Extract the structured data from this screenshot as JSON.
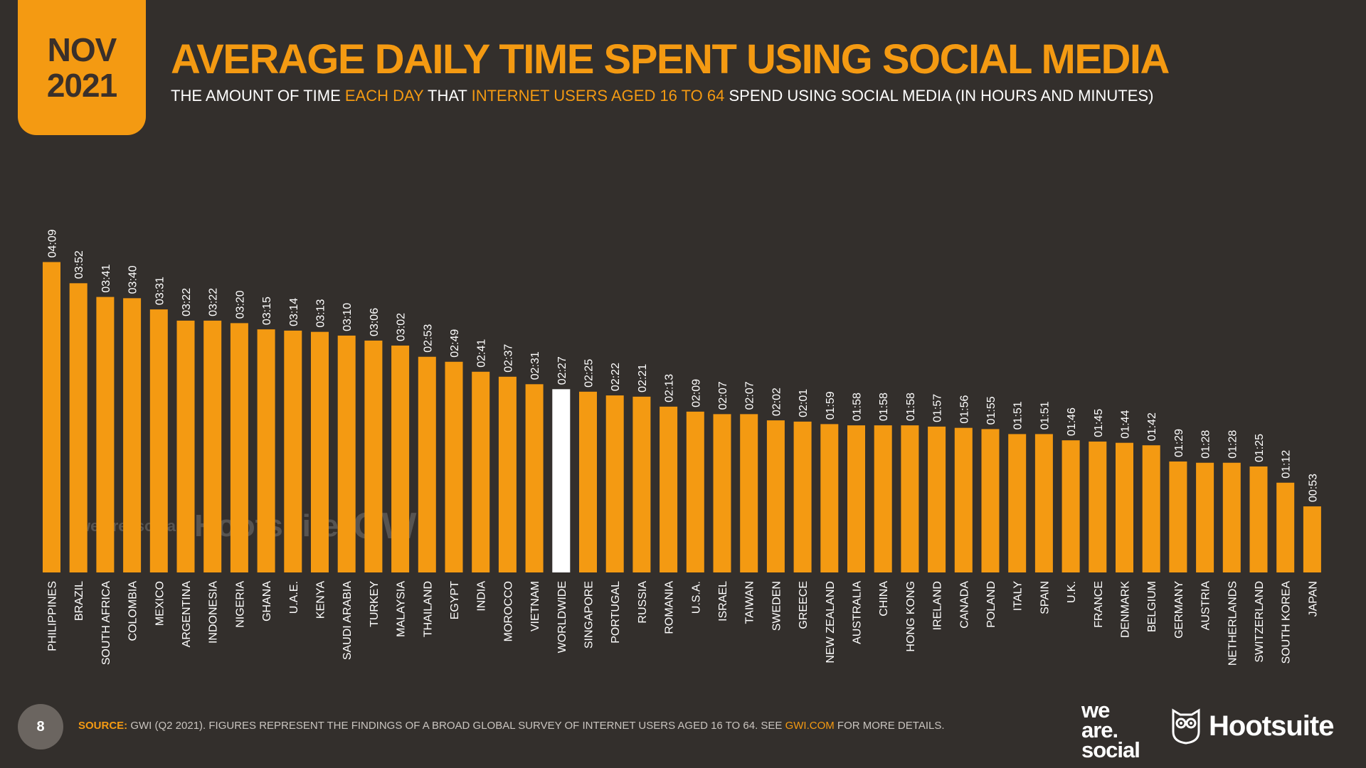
{
  "header": {
    "date_month": "NOV",
    "date_year": "2021",
    "title": "AVERAGE DAILY TIME SPENT USING SOCIAL MEDIA",
    "subtitle": {
      "part1": "THE AMOUNT OF TIME ",
      "hl1": "EACH DAY",
      "part2": " THAT ",
      "hl2": "INTERNET USERS AGED 16 TO 64",
      "part3": " SPEND USING SOCIAL MEDIA (IN HOURS AND MINUTES)"
    }
  },
  "watermark": {
    "weare": "we are. social",
    "hootsuite": "Hootsuite",
    "gwi": "GWI."
  },
  "footer": {
    "page_number": "8",
    "source_label": "SOURCE:",
    "source_text": " GWI (Q2 2021). FIGURES REPRESENT THE FINDINGS OF A BROAD GLOBAL SURVEY OF INTERNET USERS AGED 16 TO 64. SEE ",
    "source_link": "GWI.COM",
    "source_end": " FOR MORE DETAILS.",
    "logo_weare_1": "we",
    "logo_weare_2": "are.",
    "logo_weare_3": "social",
    "logo_hootsuite": "Hootsuite"
  },
  "colors": {
    "background": "#332f2c",
    "accent": "#f49a12",
    "highlight": "#ffffff"
  },
  "chart_data": {
    "type": "bar",
    "title": "AVERAGE DAILY TIME SPENT USING SOCIAL MEDIA",
    "unit": "hours:minutes",
    "highlight_category": "WORLDWIDE",
    "categories": [
      "PHILIPPINES",
      "BRAZIL",
      "SOUTH AFRICA",
      "COLOMBIA",
      "MEXICO",
      "ARGENTINA",
      "INDONESIA",
      "NIGERIA",
      "GHANA",
      "U.A.E.",
      "KENYA",
      "SAUDI ARABIA",
      "TURKEY",
      "MALAYSIA",
      "THAILAND",
      "EGYPT",
      "INDIA",
      "MOROCCO",
      "VIETNAM",
      "WORLDWIDE",
      "SINGAPORE",
      "PORTUGAL",
      "RUSSIA",
      "ROMANIA",
      "U.S.A.",
      "ISRAEL",
      "TAIWAN",
      "SWEDEN",
      "GREECE",
      "NEW ZEALAND",
      "AUSTRALIA",
      "CHINA",
      "HONG KONG",
      "IRELAND",
      "CANADA",
      "POLAND",
      "ITALY",
      "SPAIN",
      "U.K.",
      "FRANCE",
      "DENMARK",
      "BELGIUM",
      "GERMANY",
      "AUSTRIA",
      "NETHERLANDS",
      "SWITZERLAND",
      "SOUTH KOREA",
      "JAPAN"
    ],
    "values": [
      "04:09",
      "03:52",
      "03:41",
      "03:40",
      "03:31",
      "03:22",
      "03:22",
      "03:20",
      "03:15",
      "03:14",
      "03:13",
      "03:10",
      "03:06",
      "03:02",
      "02:53",
      "02:49",
      "02:41",
      "02:37",
      "02:31",
      "02:27",
      "02:25",
      "02:22",
      "02:21",
      "02:13",
      "02:09",
      "02:07",
      "02:07",
      "02:02",
      "02:01",
      "01:59",
      "01:58",
      "01:58",
      "01:58",
      "01:57",
      "01:56",
      "01:55",
      "01:51",
      "01:51",
      "01:46",
      "01:45",
      "01:44",
      "01:42",
      "01:29",
      "01:28",
      "01:28",
      "01:25",
      "01:12",
      "00:53"
    ]
  }
}
